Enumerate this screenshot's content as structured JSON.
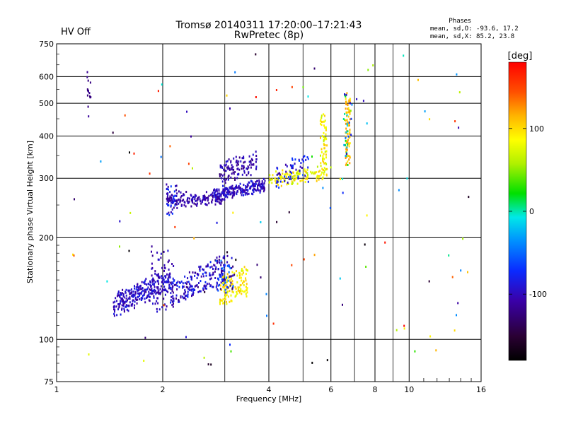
{
  "header": {
    "status": "HV Off",
    "status_color": "#cc0000",
    "title": "Tromsø 20140311 17:20:00–17:21:43",
    "subtitle": "RwPretec (8p)"
  },
  "stats": {
    "heading": "Phases",
    "line1": "mean, sd,O: -93.6, 17.2",
    "line2": "mean, sd,X:  85.2, 23.8"
  },
  "colorbar": {
    "label": "[deg]",
    "min": -180,
    "max": 180,
    "ticks": [
      100,
      0,
      -100
    ],
    "tick_labels": [
      "100",
      "0",
      "-100"
    ]
  },
  "chart_data": {
    "type": "scatter",
    "xlabel": "Frequency [MHz]",
    "ylabel": "Stationary phase Virtual Height [km]",
    "xscale": "log",
    "yscale": "log",
    "xlim": [
      1,
      16
    ],
    "ylim": [
      75,
      750
    ],
    "x_ticks": [
      1,
      2,
      4,
      6,
      8,
      10,
      16
    ],
    "x_tick_labels": [
      "1",
      "2",
      "4",
      "6",
      "8",
      "10",
      "16"
    ],
    "x_minor": [
      3,
      5,
      7,
      9
    ],
    "y_ticks": [
      75,
      100,
      200,
      300,
      400,
      500,
      600,
      750
    ],
    "y_tick_labels": [
      "75",
      "100",
      "200",
      "300",
      "400",
      "500",
      "600",
      "750"
    ],
    "grid": true,
    "clusters": [
      {
        "name": "o-low-trace",
        "count": 280,
        "x": [
          1.45,
          2.1
        ],
        "y": [
          118,
          160
        ],
        "phase": [
          -115,
          -80
        ],
        "rise": 0.55
      },
      {
        "name": "o-low-trace-2",
        "count": 200,
        "x": [
          2.1,
          3.0
        ],
        "y": [
          125,
          175
        ],
        "phase": [
          -120,
          -70
        ],
        "rise": 0.5
      },
      {
        "name": "o-low-cusp",
        "count": 60,
        "x": [
          1.85,
          2.15
        ],
        "y": [
          120,
          185
        ],
        "phase": [
          -115,
          -90
        ],
        "rise": 0
      },
      {
        "name": "x-low-trace",
        "count": 120,
        "x": [
          2.9,
          3.5
        ],
        "y": [
          125,
          165
        ],
        "phase": [
          70,
          110
        ],
        "rise": 0.3
      },
      {
        "name": "low-mixed",
        "count": 60,
        "x": [
          2.8,
          3.2
        ],
        "y": [
          140,
          175
        ],
        "phase": [
          -130,
          -40
        ],
        "rise": 0
      },
      {
        "name": "o-mid-trace",
        "count": 160,
        "x": [
          2.05,
          3.0
        ],
        "y": [
          250,
          272
        ],
        "phase": [
          -120,
          -90
        ],
        "rise": 0.1
      },
      {
        "name": "o-mid-trace-2",
        "count": 220,
        "x": [
          2.8,
          3.9
        ],
        "y": [
          260,
          295
        ],
        "phase": [
          -115,
          -80
        ],
        "rise": 0.45
      },
      {
        "name": "o-mid-upper",
        "count": 110,
        "x": [
          2.9,
          3.7
        ],
        "y": [
          290,
          360
        ],
        "phase": [
          -130,
          -90
        ],
        "rise": 0.4
      },
      {
        "name": "mid-cusp",
        "count": 40,
        "x": [
          2.05,
          2.2
        ],
        "y": [
          235,
          290
        ],
        "phase": [
          -120,
          -60
        ],
        "rise": 0
      },
      {
        "name": "x-mid-trace",
        "count": 110,
        "x": [
          4.0,
          5.6
        ],
        "y": [
          285,
          320
        ],
        "phase": [
          60,
          110
        ],
        "rise": 0.3
      },
      {
        "name": "o-high-trace",
        "count": 60,
        "x": [
          4.2,
          5.2
        ],
        "y": [
          280,
          360
        ],
        "phase": [
          -110,
          -60
        ],
        "rise": 0.4
      },
      {
        "name": "x-high-cusp",
        "count": 70,
        "x": [
          5.6,
          5.85
        ],
        "y": [
          300,
          460
        ],
        "phase": [
          60,
          110
        ],
        "rise": 0
      },
      {
        "name": "x-top-cusp",
        "count": 80,
        "x": [
          6.6,
          6.8
        ],
        "y": [
          320,
          550
        ],
        "phase": [
          90,
          130
        ],
        "rise": 0
      },
      {
        "name": "f-top-mixed",
        "count": 30,
        "x": [
          6.5,
          6.9
        ],
        "y": [
          320,
          540
        ],
        "phase": [
          -120,
          60
        ],
        "rise": 0
      },
      {
        "name": "left-column",
        "count": 14,
        "x": [
          1.22,
          1.25
        ],
        "y": [
          470,
          630
        ],
        "phase": [
          -130,
          -110
        ],
        "rise": 0
      },
      {
        "name": "scatter-noise",
        "count": 110,
        "x": [
          1.1,
          15.0
        ],
        "y": [
          85,
          700
        ],
        "phase": [
          -180,
          180
        ],
        "rise": 0
      }
    ]
  }
}
